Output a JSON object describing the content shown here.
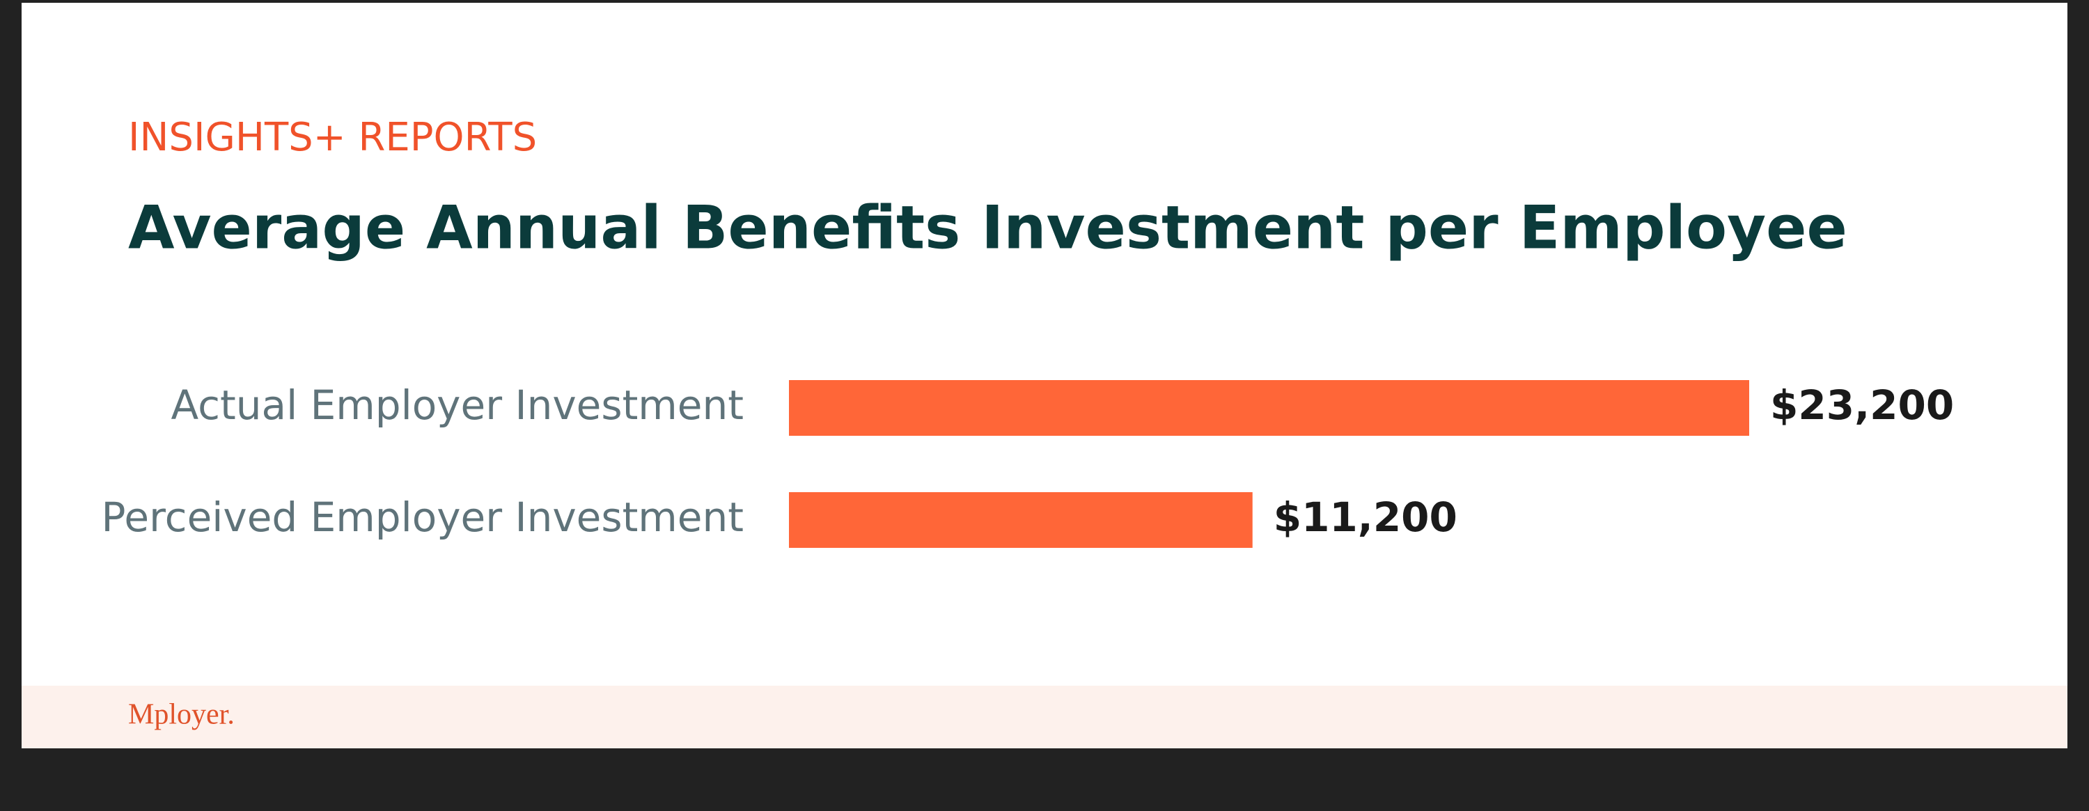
{
  "chart_data": {
    "type": "bar",
    "orientation": "horizontal",
    "subtitle": "INSIGHTS+ REPORTS",
    "title": "Average Annual Benefits Investment per Employee",
    "categories": [
      "Actual Employer Investment",
      "Perceived Employer Investment"
    ],
    "values": [
      23200,
      11200
    ],
    "value_labels": [
      "$23,200",
      "$11,200"
    ],
    "color": "#ff6638"
  },
  "footer": {
    "brand": "Mployer."
  }
}
